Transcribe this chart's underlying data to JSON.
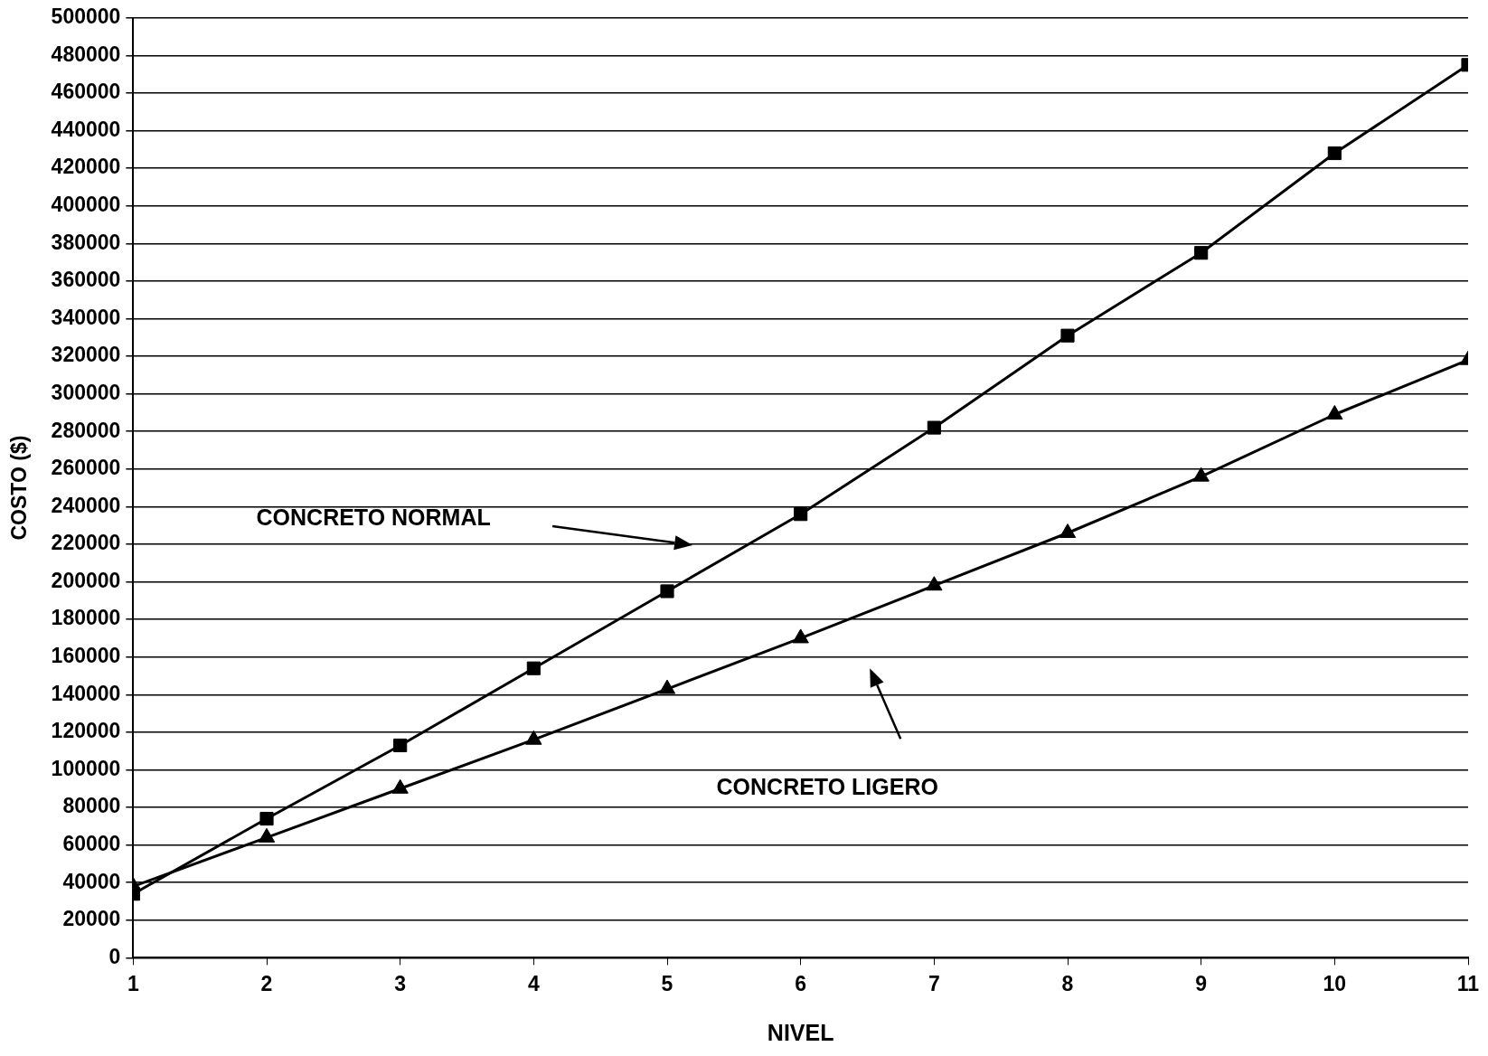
{
  "chart_data": {
    "type": "line",
    "xlabel": "NIVEL",
    "ylabel": "COSTO ($)",
    "x": [
      1,
      2,
      3,
      4,
      5,
      6,
      7,
      8,
      9,
      10,
      11
    ],
    "series": [
      {
        "color": "#000000",
        "marker": "square",
        "values": [
          34000,
          74000,
          113000,
          154000,
          195000,
          236000,
          282000,
          331000,
          375000,
          428000,
          475000
        ]
      },
      {
        "color": "#000000",
        "marker": "triangle",
        "values": [
          38000,
          64000,
          90000,
          116000,
          143000,
          170000,
          198000,
          226000,
          256000,
          289000,
          318000
        ]
      }
    ],
    "xlim": [
      1,
      11
    ],
    "xticks": [
      1,
      2,
      3,
      4,
      5,
      6,
      7,
      8,
      9,
      10,
      11
    ],
    "ylim": [
      0,
      500000
    ],
    "yticks": [
      0,
      20000,
      40000,
      60000,
      80000,
      100000,
      120000,
      140000,
      160000,
      180000,
      200000,
      220000,
      240000,
      260000,
      280000,
      300000,
      320000,
      340000,
      360000,
      380000,
      400000,
      420000,
      440000,
      460000,
      480000,
      500000
    ],
    "grid": "y",
    "legend": false,
    "line_style": "solid",
    "annotations": [
      "CONCRETO NORMAL",
      "CONCRETO LIGERO"
    ]
  }
}
